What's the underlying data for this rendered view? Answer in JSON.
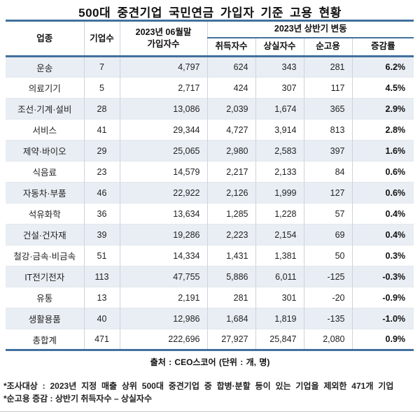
{
  "title": "500대 중견기업 국민연금 가입자 기준 고용 현황",
  "colors": {
    "accent_border": "#41719C",
    "stripe_row": "#E9EEF4",
    "grid_line": "#CCD4DF"
  },
  "table": {
    "headers": {
      "industry": "업종",
      "companies": "기업수",
      "subscribers_line1": "2023년 06월말",
      "subscribers_line2": "가입자수",
      "change_group": "2023년 상반기 변동",
      "acquired": "취득자수",
      "lost": "상실자수",
      "net": "순고용",
      "rate": "증감률"
    },
    "rows": [
      {
        "industry": "운송",
        "companies": "7",
        "subscribers": "4,797",
        "acquired": "624",
        "lost": "343",
        "net": "281",
        "rate": "6.2%"
      },
      {
        "industry": "의료기기",
        "companies": "5",
        "subscribers": "2,717",
        "acquired": "424",
        "lost": "307",
        "net": "117",
        "rate": "4.5%"
      },
      {
        "industry": "조선·기계·설비",
        "companies": "28",
        "subscribers": "13,086",
        "acquired": "2,039",
        "lost": "1,674",
        "net": "365",
        "rate": "2.9%"
      },
      {
        "industry": "서비스",
        "companies": "41",
        "subscribers": "29,344",
        "acquired": "4,727",
        "lost": "3,914",
        "net": "813",
        "rate": "2.8%"
      },
      {
        "industry": "제약·바이오",
        "companies": "29",
        "subscribers": "25,065",
        "acquired": "2,980",
        "lost": "2,583",
        "net": "397",
        "rate": "1.6%"
      },
      {
        "industry": "식음료",
        "companies": "23",
        "subscribers": "14,579",
        "acquired": "2,217",
        "lost": "2,133",
        "net": "84",
        "rate": "0.6%"
      },
      {
        "industry": "자동차·부품",
        "companies": "46",
        "subscribers": "22,922",
        "acquired": "2,126",
        "lost": "1,999",
        "net": "127",
        "rate": "0.6%"
      },
      {
        "industry": "석유화학",
        "companies": "36",
        "subscribers": "13,634",
        "acquired": "1,285",
        "lost": "1,228",
        "net": "57",
        "rate": "0.4%"
      },
      {
        "industry": "건설·건자재",
        "companies": "39",
        "subscribers": "19,286",
        "acquired": "2,223",
        "lost": "2,154",
        "net": "69",
        "rate": "0.4%"
      },
      {
        "industry": "철강·금속·비금속",
        "companies": "51",
        "subscribers": "14,334",
        "acquired": "1,431",
        "lost": "1,381",
        "net": "50",
        "rate": "0.3%"
      },
      {
        "industry": "IT전기전자",
        "companies": "113",
        "subscribers": "47,755",
        "acquired": "5,886",
        "lost": "6,011",
        "net": "-125",
        "rate": "-0.3%"
      },
      {
        "industry": "유통",
        "companies": "13",
        "subscribers": "2,191",
        "acquired": "281",
        "lost": "301",
        "net": "-20",
        "rate": "-0.9%"
      },
      {
        "industry": "생활용품",
        "companies": "40",
        "subscribers": "12,986",
        "acquired": "1,684",
        "lost": "1,819",
        "net": "-135",
        "rate": "-1.0%"
      },
      {
        "industry": "총합계",
        "companies": "471",
        "subscribers": "222,696",
        "acquired": "27,927",
        "lost": "25,847",
        "net": "2,080",
        "rate": "0.9%"
      }
    ]
  },
  "source_line": "출처 : CEO스코어 (단위 : 개, 명)",
  "footnotes": [
    "*조사대상 : 2023년 지정 매출 상위 500대 중견기업 중 합병·분할 등이 있는 기업을 제외한 471개 기업",
    "*순고용 증감 : 상반기 취득자수 – 상실자수"
  ],
  "chart_data": {
    "type": "table",
    "title": "500대 중견기업 국민연금 가입자 기준 고용 현황",
    "columns": [
      "업종",
      "기업수",
      "2023년 06월말 가입자수",
      "2023년 상반기 변동 취득자수",
      "2023년 상반기 변동 상실자수",
      "2023년 상반기 변동 순고용",
      "2023년 상반기 변동 증감률(%)"
    ],
    "rows": [
      [
        "운송",
        7,
        4797,
        624,
        343,
        281,
        6.2
      ],
      [
        "의료기기",
        5,
        2717,
        424,
        307,
        117,
        4.5
      ],
      [
        "조선·기계·설비",
        28,
        13086,
        2039,
        1674,
        365,
        2.9
      ],
      [
        "서비스",
        41,
        29344,
        4727,
        3914,
        813,
        2.8
      ],
      [
        "제약·바이오",
        29,
        25065,
        2980,
        2583,
        397,
        1.6
      ],
      [
        "식음료",
        23,
        14579,
        2217,
        2133,
        84,
        0.6
      ],
      [
        "자동차·부품",
        46,
        22922,
        2126,
        1999,
        127,
        0.6
      ],
      [
        "석유화학",
        36,
        13634,
        1285,
        1228,
        57,
        0.4
      ],
      [
        "건설·건자재",
        39,
        19286,
        2223,
        2154,
        69,
        0.4
      ],
      [
        "철강·금속·비금속",
        51,
        14334,
        1431,
        1381,
        50,
        0.3
      ],
      [
        "IT전기전자",
        113,
        47755,
        5886,
        6011,
        -125,
        -0.3
      ],
      [
        "유통",
        13,
        2191,
        281,
        301,
        -20,
        -0.9
      ],
      [
        "생활용품",
        40,
        12986,
        1684,
        1819,
        -135,
        -1.0
      ],
      [
        "총합계",
        471,
        222696,
        27927,
        25847,
        2080,
        0.9
      ]
    ],
    "source": "출처 : CEO스코어 (단위 : 개, 명)"
  }
}
